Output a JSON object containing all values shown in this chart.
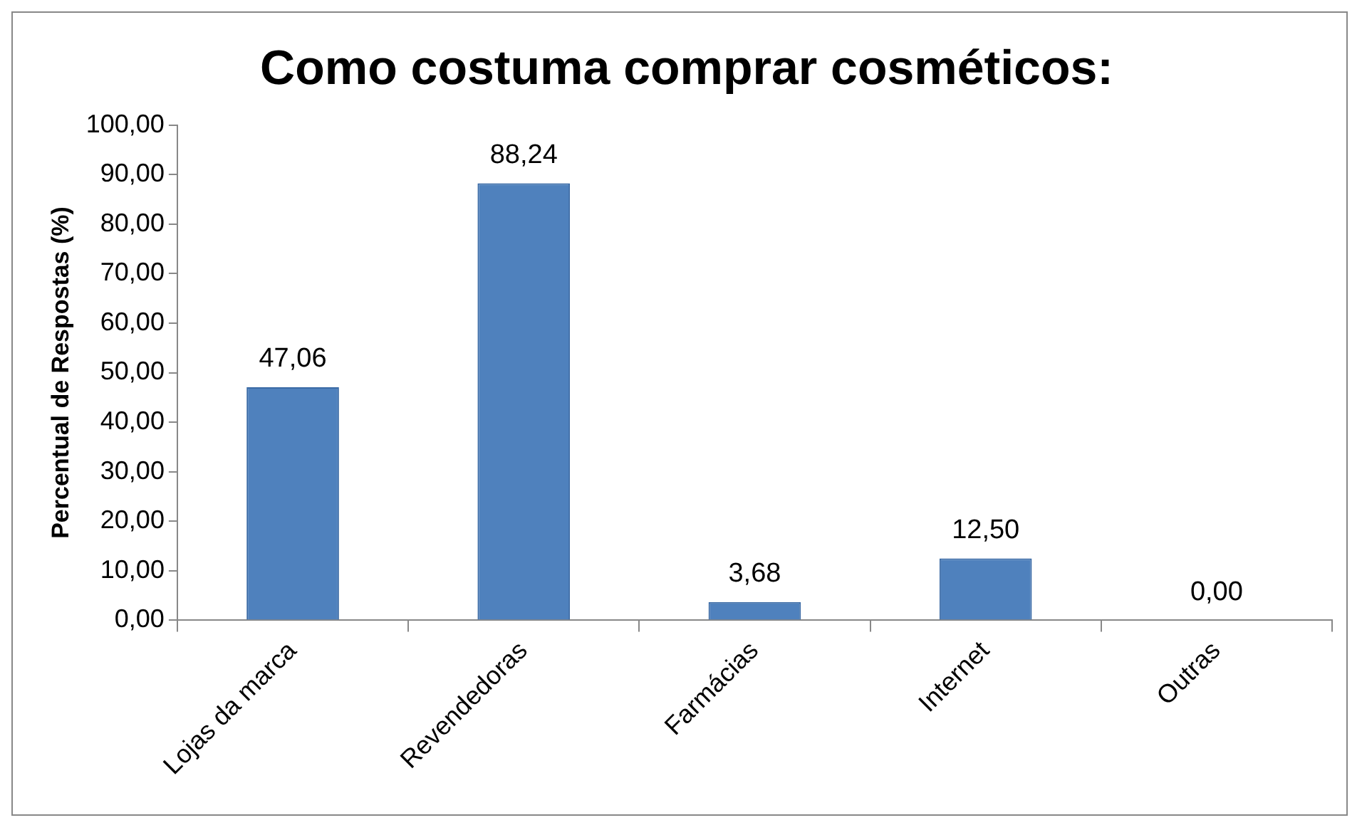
{
  "chart_data": {
    "type": "bar",
    "title": "Como costuma comprar cosméticos:",
    "ylabel": "Percentual de Respostas (%)",
    "categories": [
      "Lojas da marca",
      "Revendedoras",
      "Farmácias",
      "Internet",
      "Outras"
    ],
    "values": [
      47.06,
      88.24,
      3.68,
      12.5,
      0
    ],
    "value_labels": [
      "47,06",
      "88,24",
      "3,68",
      "12,50",
      "0,00"
    ],
    "color": "#4f81bd",
    "ylim": [
      0,
      100
    ],
    "yticks": [
      {
        "value": 0,
        "label": "0,00"
      },
      {
        "value": 10,
        "label": "10,00"
      },
      {
        "value": 20,
        "label": "20,00"
      },
      {
        "value": 30,
        "label": "30,00"
      },
      {
        "value": 40,
        "label": "40,00"
      },
      {
        "value": 50,
        "label": "50,00"
      },
      {
        "value": 60,
        "label": "60,00"
      },
      {
        "value": 70,
        "label": "70,00"
      },
      {
        "value": 80,
        "label": "80,00"
      },
      {
        "value": 90,
        "label": "90,00"
      },
      {
        "value": 100,
        "label": "100,00"
      }
    ],
    "grid": false,
    "legend": false
  }
}
